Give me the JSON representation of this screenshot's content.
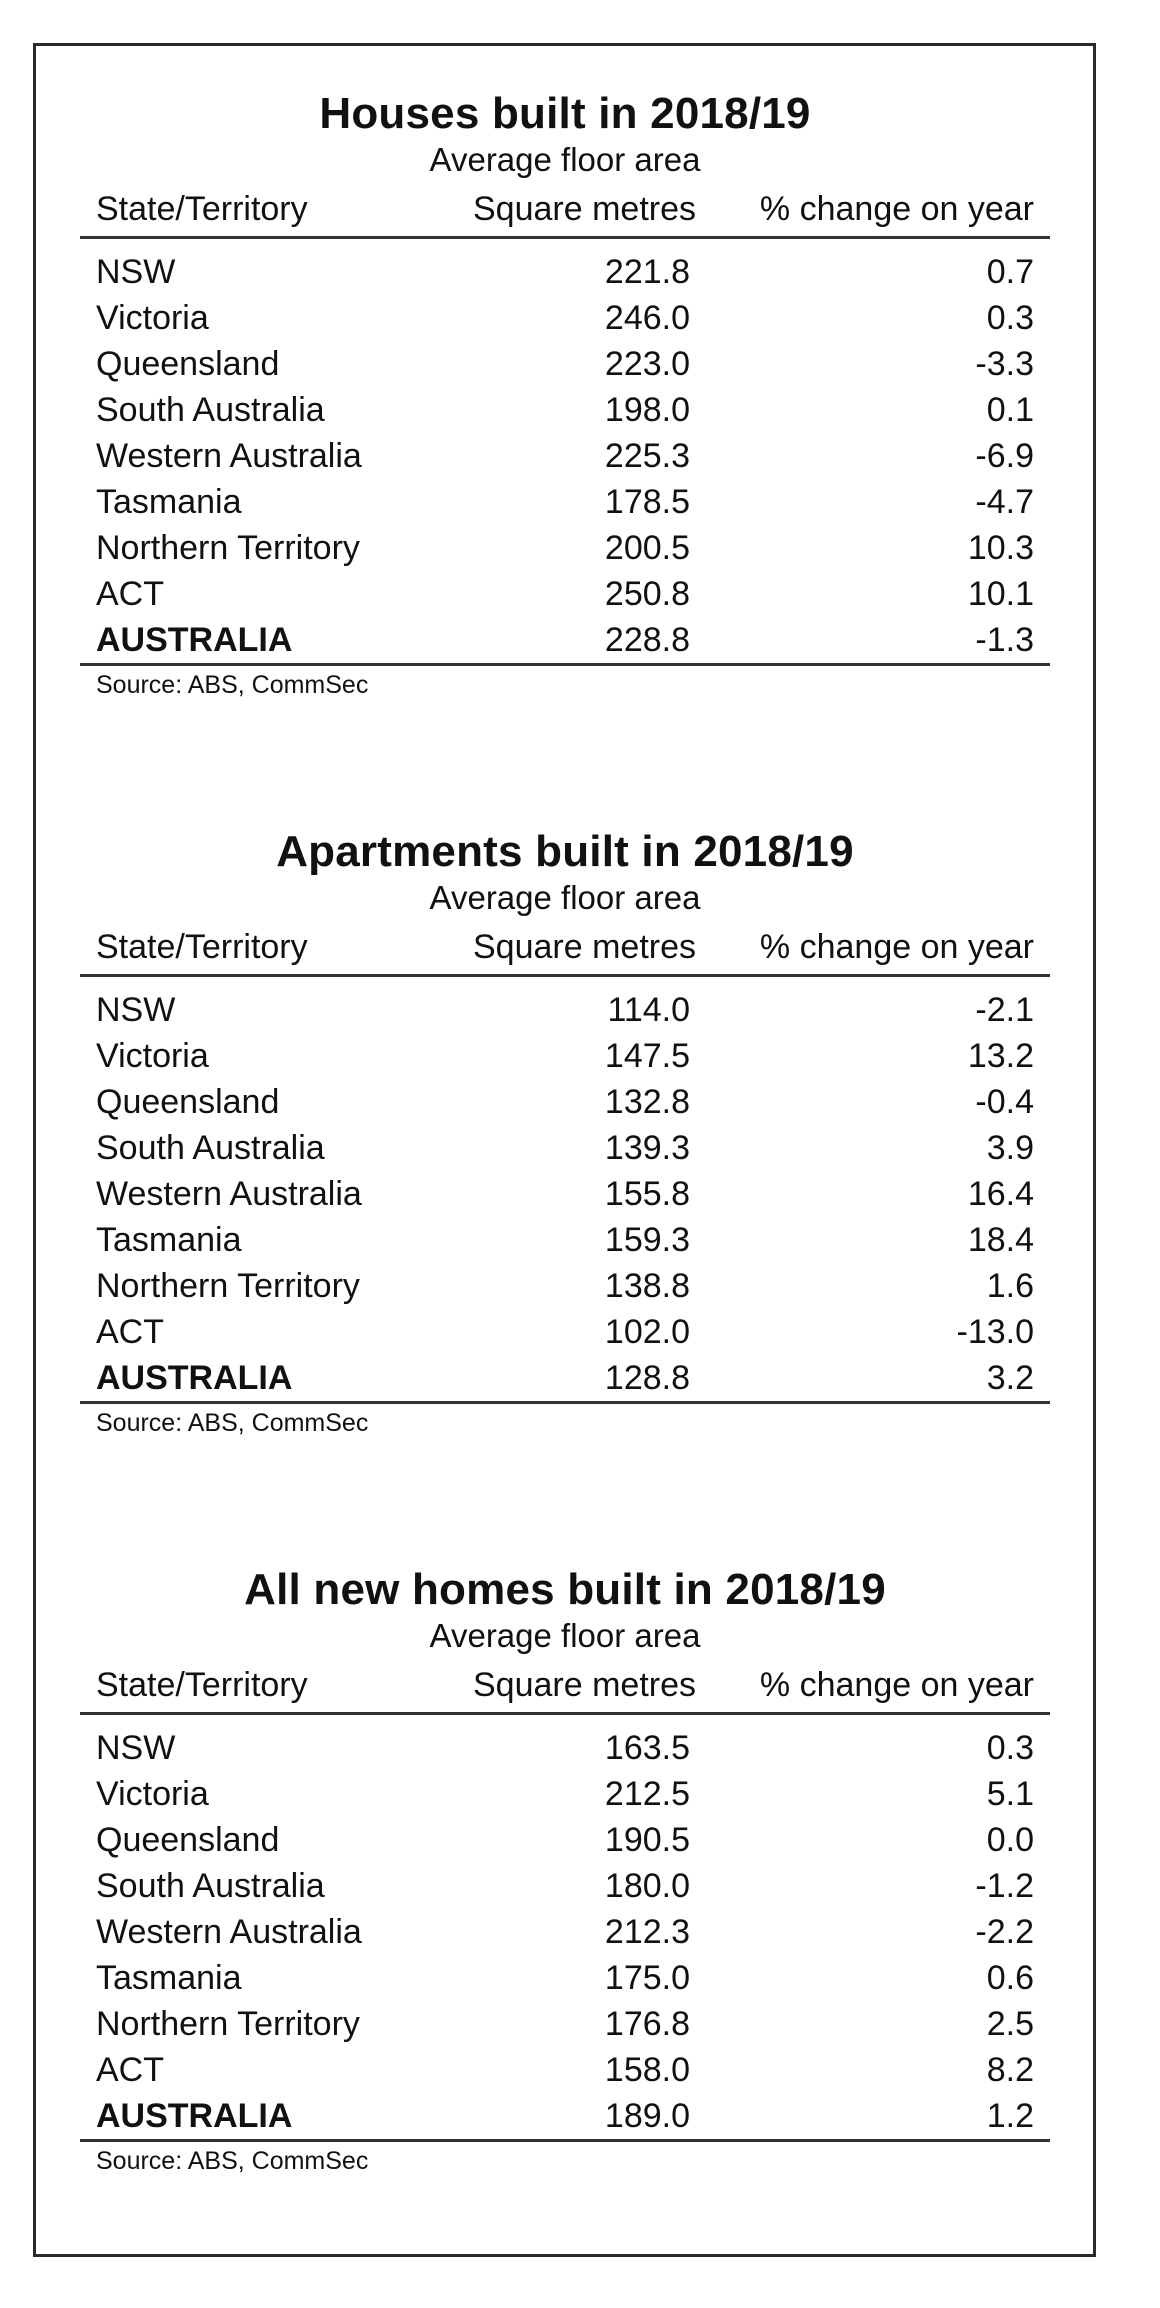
{
  "columns": {
    "state": "State/Territory",
    "sqm": "Square metres",
    "change": "% change on year"
  },
  "tables": [
    {
      "title": "Houses built in 2018/19",
      "subtitle": "Average floor area",
      "rows": [
        {
          "state": "NSW",
          "sqm": "221.8",
          "change": "0.7"
        },
        {
          "state": "Victoria",
          "sqm": "246.0",
          "change": "0.3"
        },
        {
          "state": "Queensland",
          "sqm": "223.0",
          "change": "-3.3"
        },
        {
          "state": "South Australia",
          "sqm": "198.0",
          "change": "0.1"
        },
        {
          "state": "Western Australia",
          "sqm": "225.3",
          "change": "-6.9"
        },
        {
          "state": "Tasmania",
          "sqm": "178.5",
          "change": "-4.7"
        },
        {
          "state": "Northern Territory",
          "sqm": "200.5",
          "change": "10.3"
        },
        {
          "state": "ACT",
          "sqm": "250.8",
          "change": "10.1"
        }
      ],
      "total": {
        "state": "AUSTRALIA",
        "sqm": "228.8",
        "change": "-1.3"
      },
      "source": "Source: ABS, CommSec"
    },
    {
      "title": "Apartments built in 2018/19",
      "subtitle": "Average floor area",
      "rows": [
        {
          "state": "NSW",
          "sqm": "114.0",
          "change": "-2.1"
        },
        {
          "state": "Victoria",
          "sqm": "147.5",
          "change": "13.2"
        },
        {
          "state": "Queensland",
          "sqm": "132.8",
          "change": "-0.4"
        },
        {
          "state": "South Australia",
          "sqm": "139.3",
          "change": "3.9"
        },
        {
          "state": "Western Australia",
          "sqm": "155.8",
          "change": "16.4"
        },
        {
          "state": "Tasmania",
          "sqm": "159.3",
          "change": "18.4"
        },
        {
          "state": "Northern Territory",
          "sqm": "138.8",
          "change": "1.6"
        },
        {
          "state": "ACT",
          "sqm": "102.0",
          "change": "-13.0"
        }
      ],
      "total": {
        "state": "AUSTRALIA",
        "sqm": "128.8",
        "change": "3.2"
      },
      "source": "Source: ABS, CommSec"
    },
    {
      "title": "All new homes built in 2018/19",
      "subtitle": "Average floor area",
      "rows": [
        {
          "state": "NSW",
          "sqm": "163.5",
          "change": "0.3"
        },
        {
          "state": "Victoria",
          "sqm": "212.5",
          "change": "5.1"
        },
        {
          "state": "Queensland",
          "sqm": "190.5",
          "change": "0.0"
        },
        {
          "state": "South Australia",
          "sqm": "180.0",
          "change": "-1.2"
        },
        {
          "state": "Western Australia",
          "sqm": "212.3",
          "change": "-2.2"
        },
        {
          "state": "Tasmania",
          "sqm": "175.0",
          "change": "0.6"
        },
        {
          "state": "Northern Territory",
          "sqm": "176.8",
          "change": "2.5"
        },
        {
          "state": "ACT",
          "sqm": "158.0",
          "change": "8.2"
        }
      ],
      "total": {
        "state": "AUSTRALIA",
        "sqm": "189.0",
        "change": "1.2"
      },
      "source": "Source: ABS, CommSec"
    }
  ]
}
